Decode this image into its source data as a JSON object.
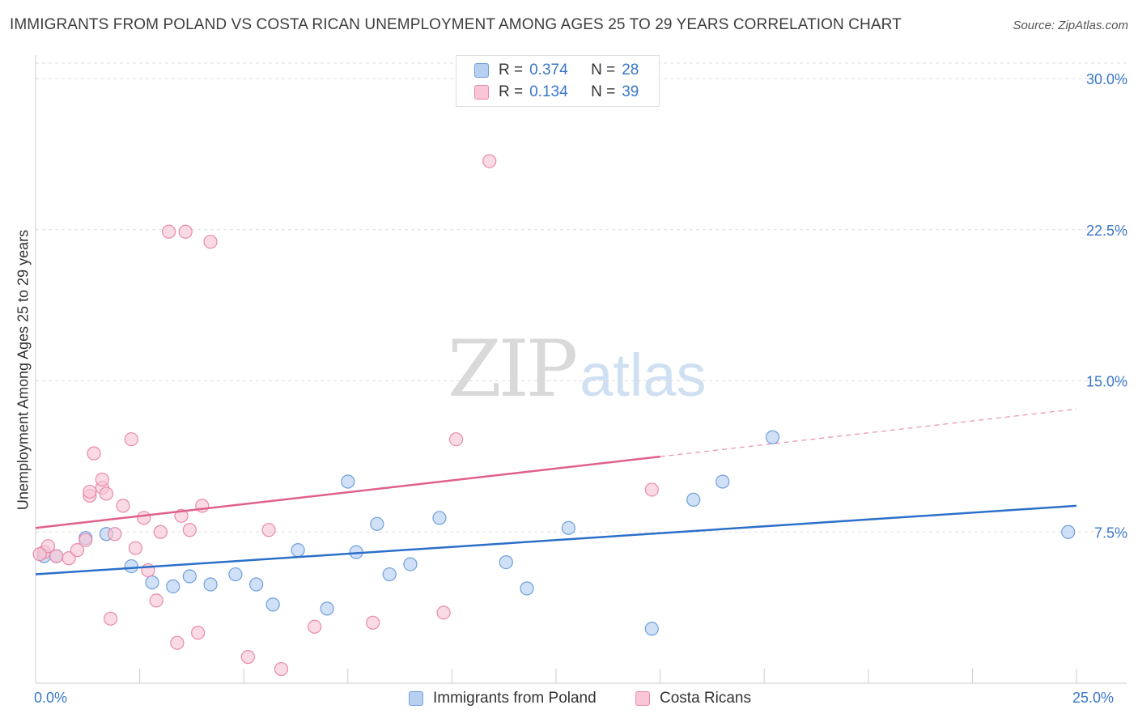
{
  "title": "IMMIGRANTS FROM POLAND VS COSTA RICAN UNEMPLOYMENT AMONG AGES 25 TO 29 YEARS CORRELATION CHART",
  "source": "Source: ZipAtlas.com",
  "watermark": {
    "zip": "ZIP",
    "atlas": "atlas"
  },
  "legend_top": {
    "rows": [
      {
        "r_label": "R =",
        "r_value": "0.374",
        "n_label": "N =",
        "n_value": "28"
      },
      {
        "r_label": "R =",
        "r_value": "0.134",
        "n_label": "N =",
        "n_value": "39"
      }
    ]
  },
  "legend_bottom": [
    {
      "label": "Immigrants from Poland"
    },
    {
      "label": "Costa Ricans"
    }
  ],
  "colors": {
    "blue_fill": "#b7d0f2",
    "blue_stroke": "#6f9fdc",
    "blue_line": "#2c6fc9",
    "pink_fill": "#f8c6d6",
    "pink_stroke": "#e98aaa",
    "pink_line": "#e0608c",
    "axis_text": "#3a78c8",
    "grid": "#dddddd"
  },
  "chart_data": {
    "type": "scatter",
    "title": "IMMIGRANTS FROM POLAND VS COSTA RICAN UNEMPLOYMENT AMONG AGES 25 TO 29 YEARS CORRELATION CHART",
    "xlabel": "",
    "ylabel": "Unemployment Among Ages 25 to 29 years",
    "xlim": [
      0,
      25
    ],
    "ylim": [
      0,
      31
    ],
    "x_tick_labels": [
      "0.0%",
      "25.0%"
    ],
    "y_ticks": [
      7.5,
      15.0,
      22.5,
      30.0
    ],
    "y_tick_labels": [
      "7.5%",
      "15.0%",
      "22.5%",
      "30.0%"
    ],
    "grid": true,
    "series": [
      {
        "name": "Immigrants from Poland",
        "color": "blue",
        "trend": {
          "x": [
            0,
            25
          ],
          "y": [
            5.4,
            8.8
          ],
          "dashed_from": null
        },
        "points": [
          [
            0.2,
            6.3
          ],
          [
            0.5,
            6.3
          ],
          [
            1.2,
            7.2
          ],
          [
            1.7,
            7.4
          ],
          [
            2.3,
            5.8
          ],
          [
            2.8,
            5.0
          ],
          [
            3.3,
            4.8
          ],
          [
            3.7,
            5.3
          ],
          [
            4.2,
            4.9
          ],
          [
            4.8,
            5.4
          ],
          [
            5.3,
            4.9
          ],
          [
            5.7,
            3.9
          ],
          [
            6.3,
            6.6
          ],
          [
            7.0,
            3.7
          ],
          [
            7.5,
            10.0
          ],
          [
            7.7,
            6.5
          ],
          [
            8.2,
            7.9
          ],
          [
            8.5,
            5.4
          ],
          [
            9.0,
            5.9
          ],
          [
            9.7,
            8.2
          ],
          [
            11.3,
            6.0
          ],
          [
            11.8,
            4.7
          ],
          [
            12.8,
            7.7
          ],
          [
            14.8,
            2.7
          ],
          [
            15.8,
            9.1
          ],
          [
            16.5,
            10.0
          ],
          [
            17.7,
            12.2
          ],
          [
            24.8,
            7.5
          ]
        ]
      },
      {
        "name": "Costa Ricans",
        "color": "pink",
        "trend": {
          "x": [
            0,
            25
          ],
          "y": [
            7.7,
            13.6
          ],
          "dashed_from": 15.0
        },
        "points": [
          [
            0.2,
            6.5
          ],
          [
            0.3,
            6.8
          ],
          [
            0.5,
            6.3
          ],
          [
            0.8,
            6.2
          ],
          [
            1.0,
            6.6
          ],
          [
            1.3,
            9.3
          ],
          [
            1.2,
            7.1
          ],
          [
            1.4,
            11.4
          ],
          [
            1.3,
            9.5
          ],
          [
            1.6,
            9.7
          ],
          [
            1.6,
            10.1
          ],
          [
            1.7,
            9.4
          ],
          [
            1.8,
            3.2
          ],
          [
            1.9,
            7.4
          ],
          [
            2.1,
            8.8
          ],
          [
            2.3,
            12.1
          ],
          [
            2.4,
            6.7
          ],
          [
            2.6,
            8.2
          ],
          [
            2.7,
            5.6
          ],
          [
            2.9,
            4.1
          ],
          [
            3.0,
            7.5
          ],
          [
            3.2,
            22.4
          ],
          [
            3.4,
            2.0
          ],
          [
            3.5,
            8.3
          ],
          [
            3.6,
            22.4
          ],
          [
            3.7,
            7.6
          ],
          [
            3.9,
            2.5
          ],
          [
            4.0,
            8.8
          ],
          [
            4.2,
            21.9
          ],
          [
            5.1,
            1.3
          ],
          [
            5.6,
            7.6
          ],
          [
            5.9,
            0.7
          ],
          [
            6.7,
            2.8
          ],
          [
            8.1,
            3.0
          ],
          [
            9.8,
            3.5
          ],
          [
            10.1,
            12.1
          ],
          [
            10.9,
            25.9
          ],
          [
            14.8,
            9.6
          ],
          [
            0.1,
            6.4
          ]
        ]
      }
    ]
  }
}
